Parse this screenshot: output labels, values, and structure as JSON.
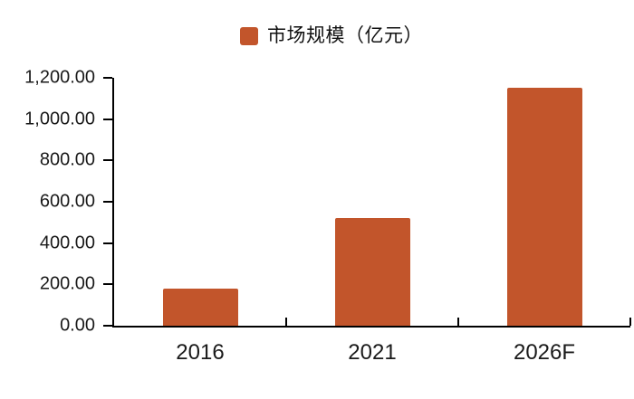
{
  "chart_data": {
    "type": "bar",
    "title": "",
    "legend": "市场规模（亿元）",
    "legend_position": "top-center",
    "categories": [
      "2016",
      "2021",
      "2026F"
    ],
    "values": [
      180,
      520,
      1150
    ],
    "xlabel": "",
    "ylabel": "",
    "ylim": [
      0,
      1200
    ],
    "ytick_step": 200,
    "ytick_labels": [
      "0.00",
      "200.00",
      "400.00",
      "600.00",
      "800.00",
      "1,000.00",
      "1,200.00"
    ],
    "grid": false,
    "bar_color": "#C2552B",
    "axis_color": "#000000",
    "text_color": "#1A1A1A",
    "background_color": "#FFFFFF"
  }
}
